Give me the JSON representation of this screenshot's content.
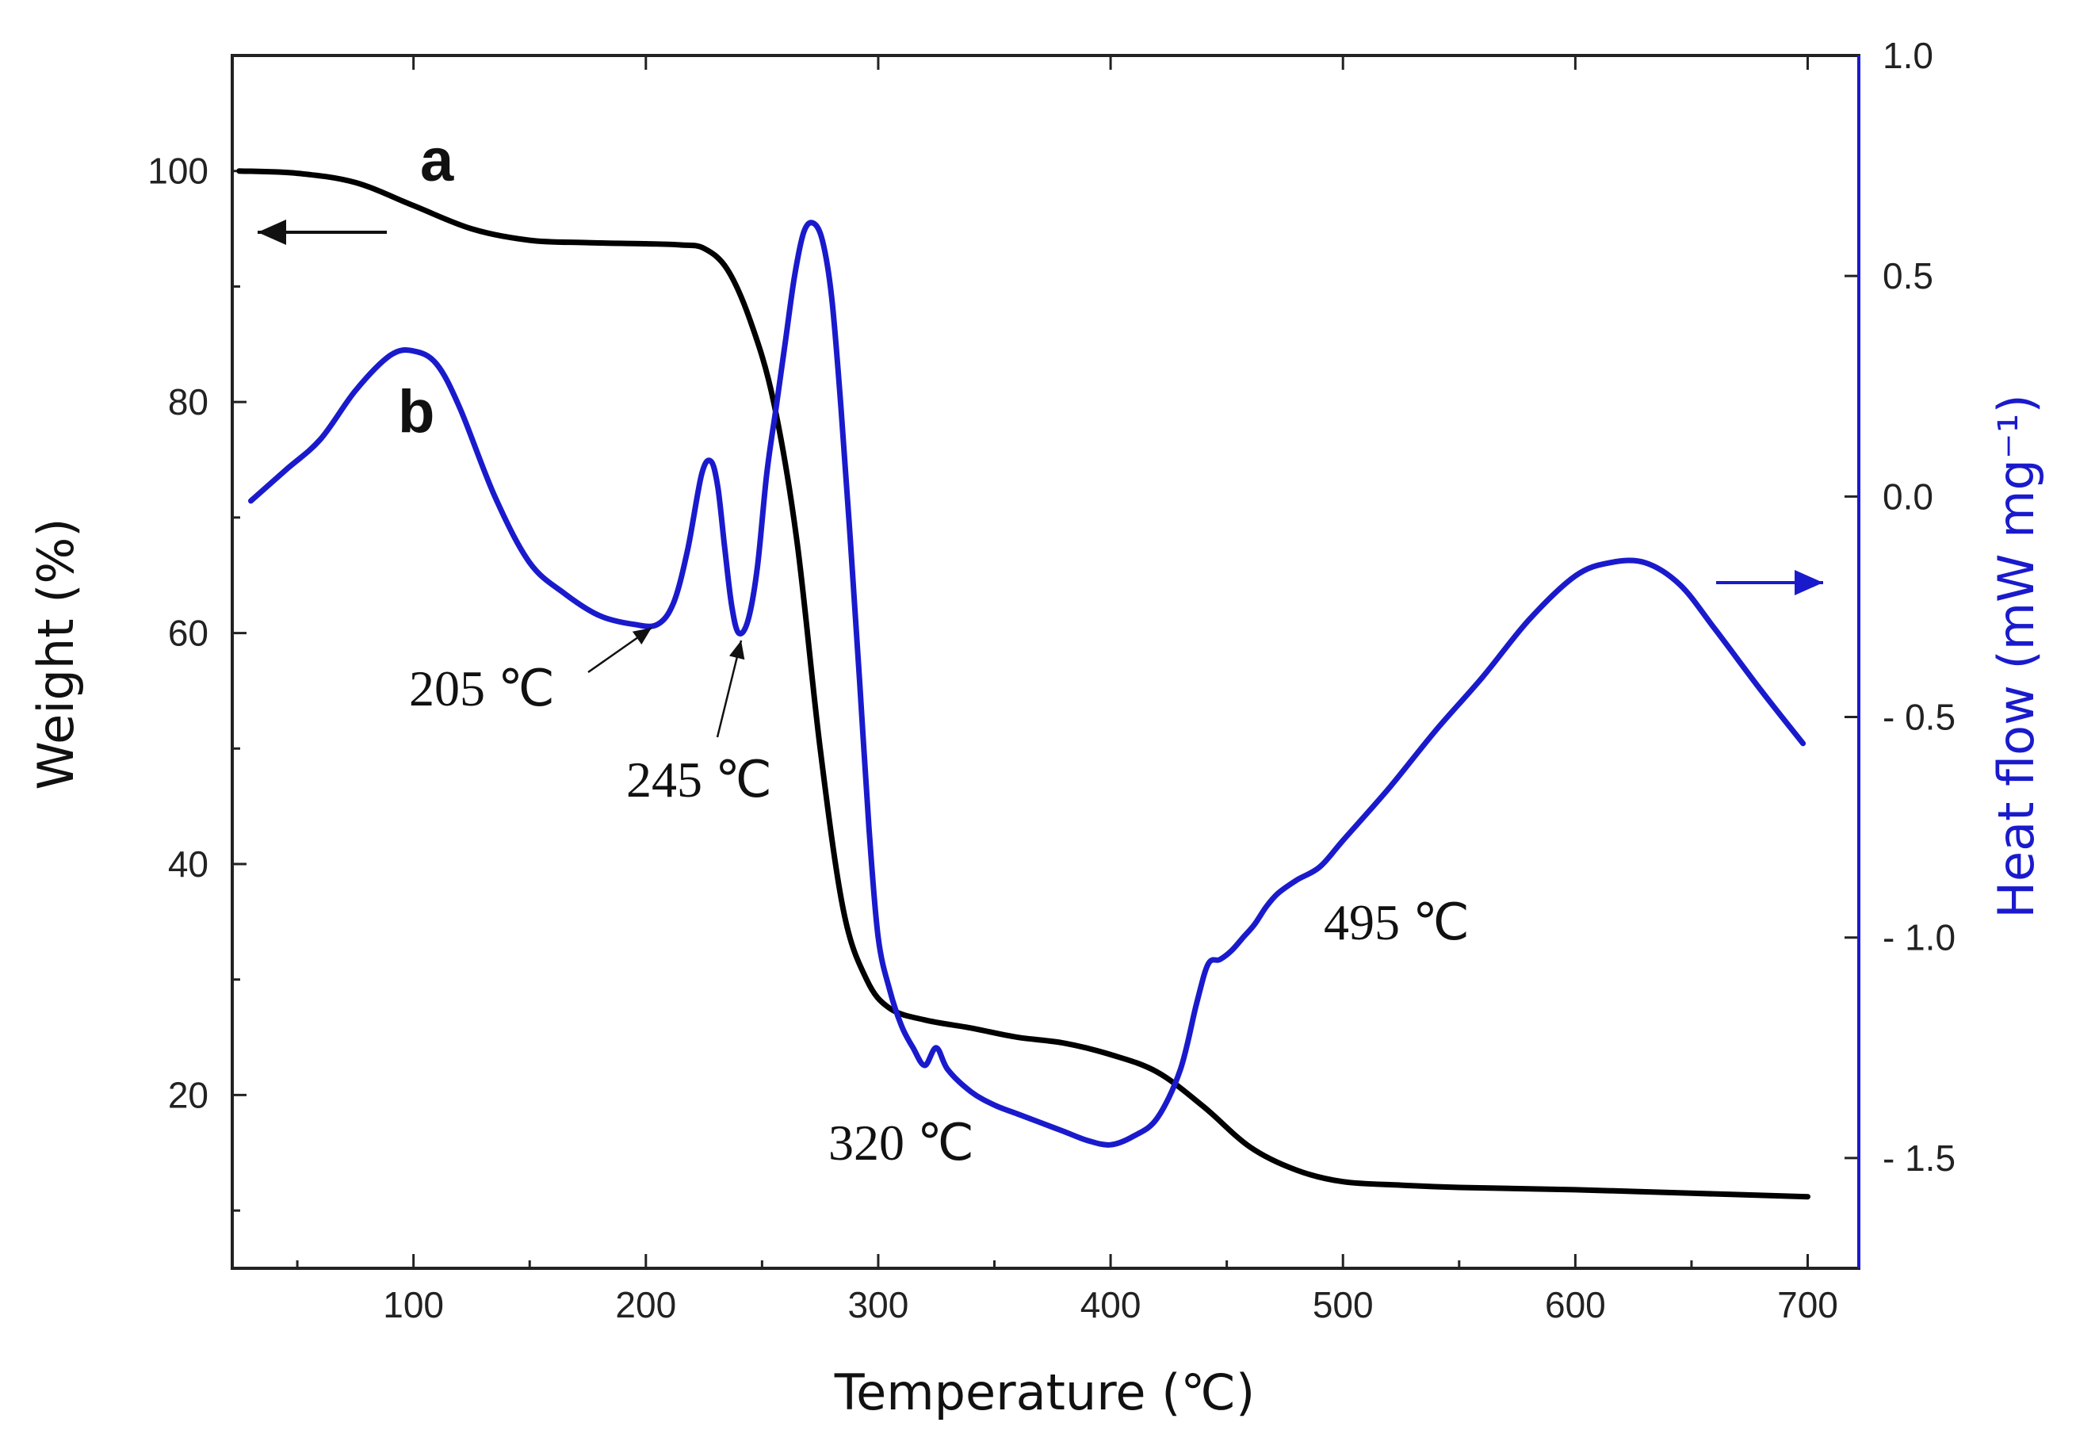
{
  "chart_data": {
    "type": "line",
    "title": "",
    "xlabel": "Temperature (℃)",
    "ylabel_left": "Weight (%)",
    "ylabel_right": "Heat flow (mW mg⁻¹)",
    "xlim": [
      22,
      722
    ],
    "ylim_left": [
      5,
      110
    ],
    "ylim_right": [
      -1.75,
      1.0
    ],
    "x_ticks": [
      100,
      200,
      300,
      400,
      500,
      600,
      700
    ],
    "x_ticklabels": [
      "100",
      "200",
      "300",
      "400",
      "500",
      "600",
      "700"
    ],
    "y_left_ticks": [
      20,
      40,
      60,
      80,
      100
    ],
    "y_left_ticklabels": [
      "20",
      "40",
      "60",
      "80",
      "100"
    ],
    "y_right_ticks": [
      1.0,
      0.5,
      0.0,
      -0.5,
      -1.0,
      -1.5
    ],
    "y_right_ticklabels": [
      "1.0",
      "0.5",
      "0.0",
      "- 0.5",
      "- 1.0",
      "- 1.5"
    ],
    "colors": {
      "weight": "#000000",
      "heat_flow": "#1a1acd",
      "axes": "#222222"
    },
    "series": [
      {
        "name": "a",
        "label": "a",
        "axis": "left",
        "color": "#000000",
        "x": [
          25,
          50,
          75,
          100,
          125,
          150,
          175,
          200,
          215,
          225,
          235,
          245,
          255,
          265,
          275,
          285,
          295,
          305,
          320,
          340,
          360,
          380,
          400,
          420,
          440,
          460,
          480,
          500,
          525,
          550,
          600,
          650,
          700
        ],
        "y": [
          100,
          99.8,
          99,
          97,
          95,
          94,
          93.8,
          93.7,
          93.6,
          93.3,
          91.5,
          87,
          80,
          68,
          50,
          36,
          30,
          27.5,
          26.5,
          25.8,
          25,
          24.5,
          23.5,
          22,
          19,
          15.5,
          13.5,
          12.5,
          12.2,
          12,
          11.8,
          11.5,
          11.2
        ]
      },
      {
        "name": "b",
        "label": "b",
        "axis": "right",
        "color": "#1a1acd",
        "x": [
          30,
          45,
          60,
          75,
          90,
          100,
          110,
          120,
          135,
          150,
          165,
          180,
          195,
          205,
          212,
          218,
          224,
          228,
          231,
          234,
          237,
          240,
          244,
          248,
          252,
          256,
          260,
          264,
          268,
          272,
          276,
          280,
          284,
          288,
          292,
          296,
          300,
          305,
          310,
          315,
          320,
          325,
          330,
          340,
          350,
          360,
          370,
          380,
          390,
          400,
          410,
          420,
          430,
          437,
          442,
          447,
          452,
          457,
          462,
          467,
          472,
          480,
          490,
          500,
          520,
          540,
          560,
          580,
          600,
          615,
          630,
          645,
          660,
          680,
          698
        ],
        "y": [
          -0.01,
          0.06,
          0.13,
          0.24,
          0.32,
          0.33,
          0.3,
          0.2,
          0.0,
          -0.15,
          -0.22,
          -0.27,
          -0.29,
          -0.29,
          -0.24,
          -0.12,
          0.05,
          0.08,
          0.02,
          -0.12,
          -0.25,
          -0.31,
          -0.28,
          -0.16,
          0.05,
          0.2,
          0.35,
          0.5,
          0.6,
          0.62,
          0.58,
          0.45,
          0.2,
          -0.1,
          -0.42,
          -0.75,
          -1.0,
          -1.12,
          -1.2,
          -1.25,
          -1.29,
          -1.25,
          -1.3,
          -1.35,
          -1.38,
          -1.4,
          -1.42,
          -1.44,
          -1.46,
          -1.47,
          -1.45,
          -1.41,
          -1.3,
          -1.15,
          -1.06,
          -1.05,
          -1.03,
          -1.0,
          -0.97,
          -0.93,
          -0.9,
          -0.87,
          -0.84,
          -0.78,
          -0.66,
          -0.53,
          -0.41,
          -0.28,
          -0.18,
          -0.15,
          -0.15,
          -0.2,
          -0.3,
          -0.44,
          -0.56
        ]
      }
    ],
    "annotations": [
      {
        "text": "205 ℃",
        "x": 205,
        "y_heat": -0.3
      },
      {
        "text": "245 ℃",
        "x": 240,
        "y_heat": -0.34
      },
      {
        "text": "320 ℃"
      },
      {
        "text": "495 ℃"
      }
    ],
    "series_labels": {
      "a": "a",
      "b": "b"
    },
    "direction_arrows": [
      "weight curve → left axis",
      "heat flow curve → right axis"
    ]
  }
}
